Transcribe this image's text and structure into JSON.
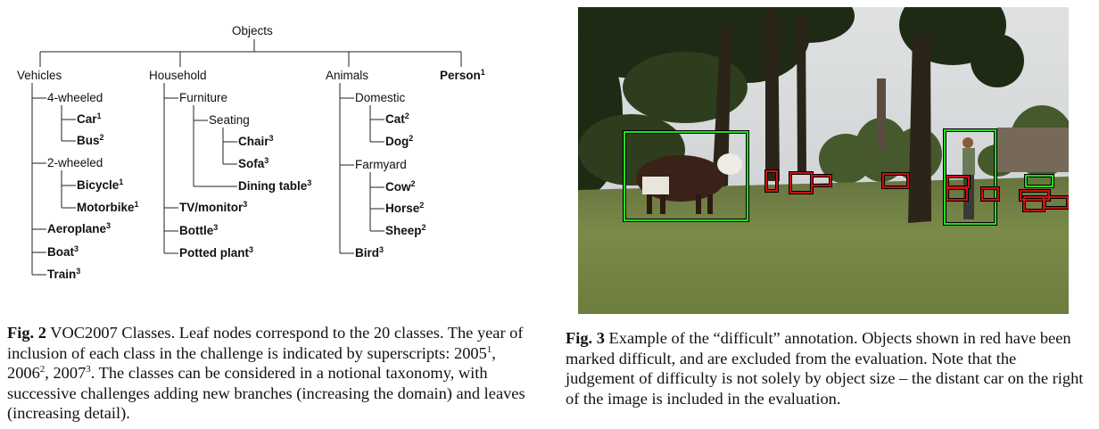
{
  "taxonomy": {
    "root": "Objects",
    "vehicles": {
      "label": "Vehicles",
      "four_wheeled": {
        "label": "4-wheeled",
        "car": {
          "name": "Car",
          "sup": "1"
        },
        "bus": {
          "name": "Bus",
          "sup": "2"
        }
      },
      "two_wheeled": {
        "label": "2-wheeled",
        "bicycle": {
          "name": "Bicycle",
          "sup": "1"
        },
        "motorbike": {
          "name": "Motorbike",
          "sup": "1"
        }
      },
      "aeroplane": {
        "name": "Aeroplane",
        "sup": "3"
      },
      "boat": {
        "name": "Boat",
        "sup": "3"
      },
      "train": {
        "name": "Train",
        "sup": "3"
      }
    },
    "household": {
      "label": "Household",
      "furniture": {
        "label": "Furniture",
        "seating": {
          "label": "Seating",
          "chair": {
            "name": "Chair",
            "sup": "3"
          },
          "sofa": {
            "name": "Sofa",
            "sup": "3"
          }
        },
        "dining_table": {
          "name": "Dining table",
          "sup": "3"
        }
      },
      "tv_monitor": {
        "name": "TV/monitor",
        "sup": "3"
      },
      "bottle": {
        "name": "Bottle",
        "sup": "3"
      },
      "potted_plant": {
        "name": "Potted plant",
        "sup": "3"
      }
    },
    "animals": {
      "label": "Animals",
      "domestic": {
        "label": "Domestic",
        "cat": {
          "name": "Cat",
          "sup": "2"
        },
        "dog": {
          "name": "Dog",
          "sup": "2"
        }
      },
      "farmyard": {
        "label": "Farmyard",
        "cow": {
          "name": "Cow",
          "sup": "2"
        },
        "horse": {
          "name": "Horse",
          "sup": "2"
        },
        "sheep": {
          "name": "Sheep",
          "sup": "2"
        }
      },
      "bird": {
        "name": "Bird",
        "sup": "3"
      }
    },
    "person": {
      "name": "Person",
      "sup": "1"
    }
  },
  "fig2": {
    "label": "Fig. 2",
    "text_a": "VOC2007 Classes. Leaf nodes correspond to the 20 classes. The year of inclusion of each class in the challenge is indicated by superscripts: 2005",
    "sup1": "1",
    "sep1": ", 2006",
    "sup2": "2",
    "sep2": ", 2007",
    "sup3": "3",
    "text_b": ". The classes can be considered in a notional taxonomy, with successive challenges adding new branches (increasing the domain) and leaves (increasing detail)."
  },
  "fig3": {
    "label": "Fig. 3",
    "text": "Example of the “difficult” annotation. Objects shown in red have been marked difficult, and are excluded from the evaluation. Note that the judgement of difficulty is not solely by object size – the distant car on the right of the image is included in the evaluation."
  },
  "colors": {
    "difficult_box": "#cc1111",
    "included_box": "#22dd22"
  }
}
